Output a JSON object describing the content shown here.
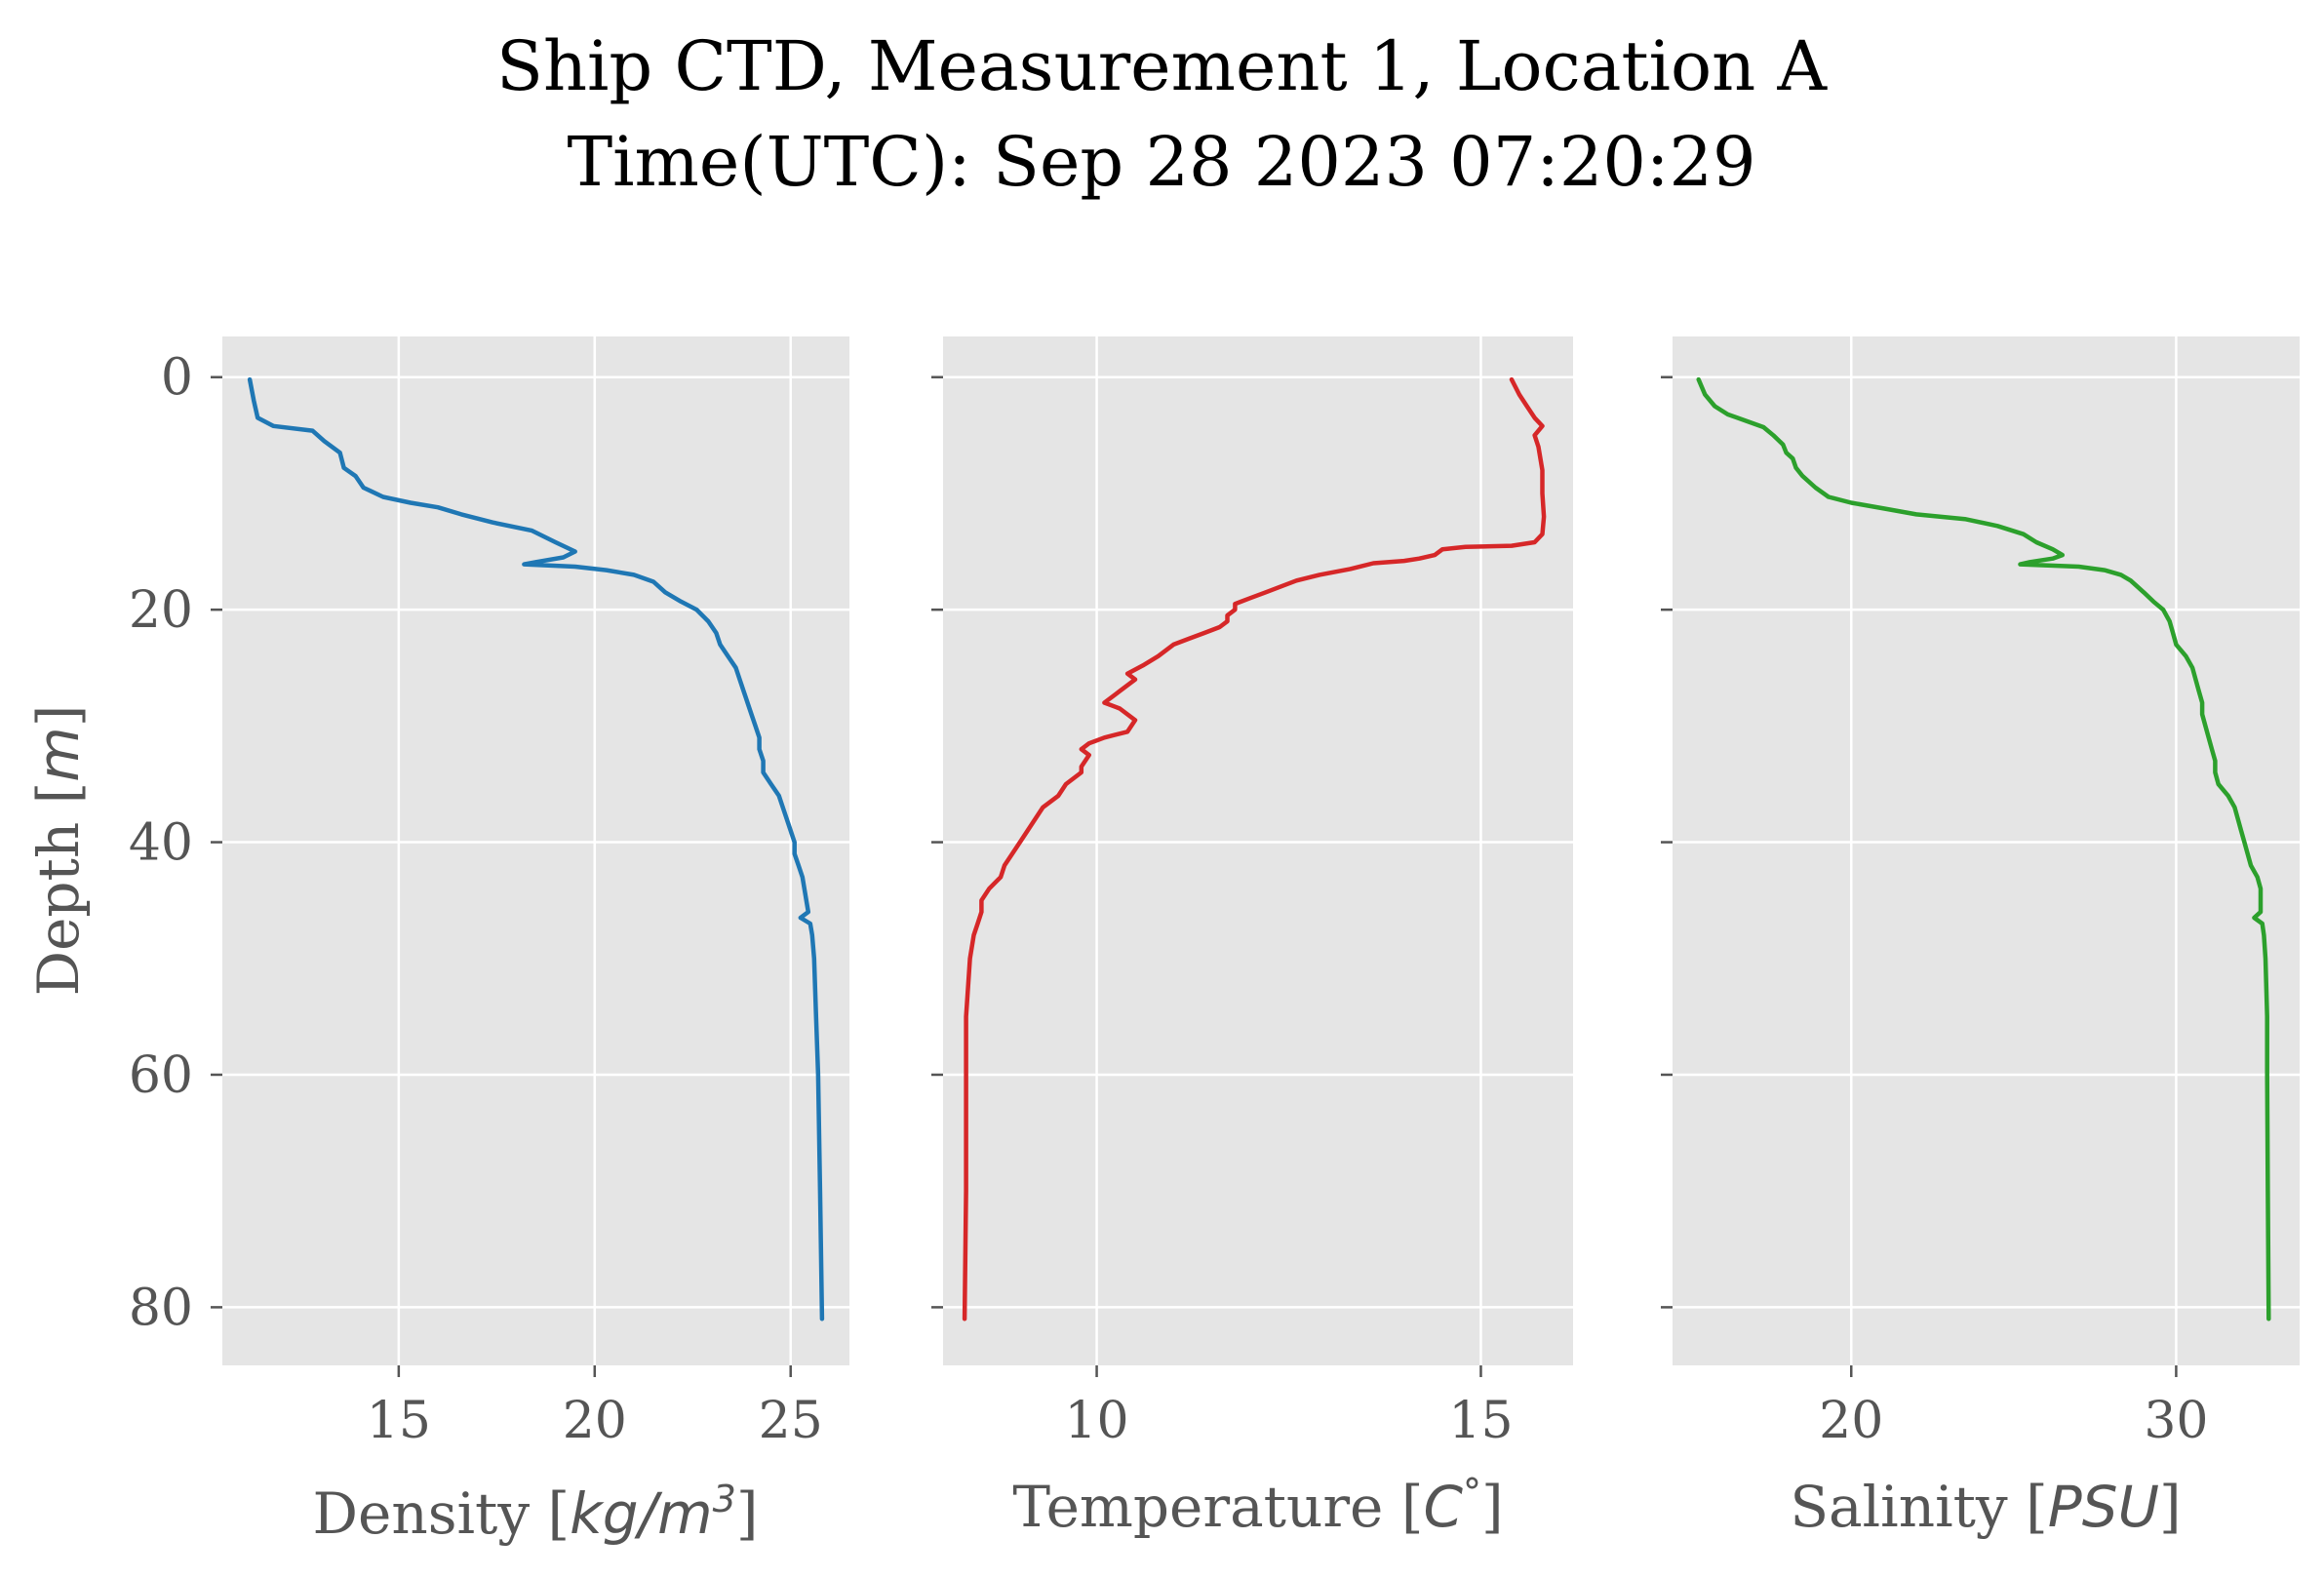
{
  "figure": {
    "title_line1": "Ship CTD, Measurement 1, Location A",
    "title_line2": "Time(UTC): Sep 28 2023 07:20:29"
  },
  "chart_data": [
    {
      "type": "line",
      "xlabel_text": "Density [",
      "xlabel_unit": "kg/m",
      "xlabel_sup": "3",
      "xlabel_close": "]",
      "ylabel_text": "Depth [",
      "ylabel_unit": "m",
      "ylabel_close": "]",
      "xlim": [
        10.5,
        26.5
      ],
      "ylim": [
        85,
        -3.5
      ],
      "y_inverted": true,
      "grid": true,
      "xticks": [
        15,
        20,
        25
      ],
      "yticks": [
        0,
        20,
        40,
        60,
        80
      ],
      "ytick_labels": [
        "0",
        "20",
        "40",
        "60",
        "80"
      ],
      "color": "#1f77b4",
      "series": [
        {
          "values": [
            [
              11.2,
              0.2
            ],
            [
              11.3,
              2
            ],
            [
              11.4,
              3.5
            ],
            [
              11.8,
              4.2
            ],
            [
              12.8,
              4.6
            ],
            [
              13.1,
              5.5
            ],
            [
              13.5,
              6.5
            ],
            [
              13.6,
              7.8
            ],
            [
              13.9,
              8.5
            ],
            [
              14.1,
              9.5
            ],
            [
              14.6,
              10.3
            ],
            [
              15.3,
              10.8
            ],
            [
              16.0,
              11.2
            ],
            [
              16.6,
              11.8
            ],
            [
              17.4,
              12.5
            ],
            [
              18.4,
              13.2
            ],
            [
              19.0,
              14.2
            ],
            [
              19.5,
              15.0
            ],
            [
              19.2,
              15.5
            ],
            [
              18.5,
              15.9
            ],
            [
              18.2,
              16.1
            ],
            [
              19.5,
              16.3
            ],
            [
              20.3,
              16.6
            ],
            [
              21.0,
              17.0
            ],
            [
              21.5,
              17.6
            ],
            [
              21.8,
              18.5
            ],
            [
              22.2,
              19.3
            ],
            [
              22.6,
              20.0
            ],
            [
              22.9,
              21.0
            ],
            [
              23.1,
              22.0
            ],
            [
              23.2,
              23.0
            ],
            [
              23.4,
              24.0
            ],
            [
              23.6,
              25.0
            ],
            [
              23.7,
              26.0
            ],
            [
              23.8,
              27.0
            ],
            [
              23.9,
              28.0
            ],
            [
              24.0,
              29.0
            ],
            [
              24.1,
              30.0
            ],
            [
              24.2,
              31.0
            ],
            [
              24.2,
              32.0
            ],
            [
              24.3,
              33.0
            ],
            [
              24.3,
              34.0
            ],
            [
              24.5,
              35.0
            ],
            [
              24.7,
              36.0
            ],
            [
              24.8,
              37.0
            ],
            [
              24.9,
              38.0
            ],
            [
              25.0,
              39.0
            ],
            [
              25.1,
              40.0
            ],
            [
              25.1,
              41.0
            ],
            [
              25.2,
              42.0
            ],
            [
              25.3,
              43.0
            ],
            [
              25.35,
              44.0
            ],
            [
              25.4,
              45.0
            ],
            [
              25.45,
              46.0
            ],
            [
              25.25,
              46.5
            ],
            [
              25.5,
              47.0
            ],
            [
              25.55,
              48.0
            ],
            [
              25.6,
              50.0
            ],
            [
              25.65,
              55.0
            ],
            [
              25.7,
              60.0
            ],
            [
              25.75,
              70.0
            ],
            [
              25.8,
              81.0
            ]
          ]
        }
      ]
    },
    {
      "type": "line",
      "xlabel_text": "Temperature [",
      "xlabel_unit": "C",
      "xlabel_sup": "°",
      "xlabel_close": "]",
      "xlim": [
        8.0,
        16.2
      ],
      "ylim": [
        85,
        -3.5
      ],
      "y_inverted": true,
      "grid": true,
      "xticks": [
        10,
        15
      ],
      "yticks": [
        0,
        20,
        40,
        60,
        80
      ],
      "color": "#d62728",
      "series": [
        {
          "values": [
            [
              15.4,
              0.2
            ],
            [
              15.5,
              1.5
            ],
            [
              15.6,
              2.5
            ],
            [
              15.7,
              3.5
            ],
            [
              15.8,
              4.2
            ],
            [
              15.7,
              5.0
            ],
            [
              15.75,
              6.0
            ],
            [
              15.8,
              8.0
            ],
            [
              15.8,
              10.0
            ],
            [
              15.82,
              12.0
            ],
            [
              15.8,
              13.5
            ],
            [
              15.7,
              14.2
            ],
            [
              15.4,
              14.5
            ],
            [
              14.8,
              14.6
            ],
            [
              14.5,
              14.8
            ],
            [
              14.4,
              15.3
            ],
            [
              14.2,
              15.6
            ],
            [
              14.0,
              15.8
            ],
            [
              13.6,
              16.0
            ],
            [
              13.3,
              16.5
            ],
            [
              12.9,
              17.0
            ],
            [
              12.6,
              17.5
            ],
            [
              12.4,
              18.0
            ],
            [
              12.2,
              18.5
            ],
            [
              12.0,
              19.0
            ],
            [
              11.8,
              19.5
            ],
            [
              11.8,
              20.0
            ],
            [
              11.7,
              20.5
            ],
            [
              11.7,
              21.0
            ],
            [
              11.6,
              21.5
            ],
            [
              11.4,
              22.0
            ],
            [
              11.2,
              22.5
            ],
            [
              11.0,
              23.0
            ],
            [
              10.8,
              24.0
            ],
            [
              10.6,
              24.8
            ],
            [
              10.4,
              25.5
            ],
            [
              10.5,
              26.0
            ],
            [
              10.3,
              27.0
            ],
            [
              10.1,
              28.0
            ],
            [
              10.3,
              28.5
            ],
            [
              10.5,
              29.5
            ],
            [
              10.4,
              30.5
            ],
            [
              10.1,
              31.0
            ],
            [
              9.9,
              31.5
            ],
            [
              9.8,
              32.0
            ],
            [
              9.9,
              32.5
            ],
            [
              9.8,
              33.5
            ],
            [
              9.8,
              34.0
            ],
            [
              9.6,
              35.0
            ],
            [
              9.5,
              36.0
            ],
            [
              9.3,
              37.0
            ],
            [
              9.2,
              38.0
            ],
            [
              9.1,
              39.0
            ],
            [
              9.0,
              40.0
            ],
            [
              8.9,
              41.0
            ],
            [
              8.8,
              42.0
            ],
            [
              8.75,
              43.0
            ],
            [
              8.6,
              44.0
            ],
            [
              8.5,
              45.0
            ],
            [
              8.5,
              46.0
            ],
            [
              8.45,
              47.0
            ],
            [
              8.4,
              48.0
            ],
            [
              8.35,
              50.0
            ],
            [
              8.3,
              55.0
            ],
            [
              8.3,
              60.0
            ],
            [
              8.3,
              70.0
            ],
            [
              8.28,
              81.0
            ]
          ]
        }
      ]
    },
    {
      "type": "line",
      "xlabel_text": "Salinity [",
      "xlabel_unit": "PSU",
      "xlabel_close": "]",
      "xlim": [
        14.5,
        33.8
      ],
      "ylim": [
        85,
        -3.5
      ],
      "y_inverted": true,
      "grid": true,
      "xticks": [
        20,
        30
      ],
      "yticks": [
        0,
        20,
        40,
        60,
        80
      ],
      "color": "#2ca02c",
      "series": [
        {
          "values": [
            [
              15.3,
              0.2
            ],
            [
              15.5,
              1.5
            ],
            [
              15.8,
              2.5
            ],
            [
              16.2,
              3.2
            ],
            [
              16.8,
              3.8
            ],
            [
              17.3,
              4.3
            ],
            [
              17.6,
              5.0
            ],
            [
              17.9,
              5.8
            ],
            [
              18.0,
              6.5
            ],
            [
              18.2,
              7.0
            ],
            [
              18.3,
              7.8
            ],
            [
              18.5,
              8.5
            ],
            [
              18.9,
              9.5
            ],
            [
              19.3,
              10.3
            ],
            [
              20.0,
              10.8
            ],
            [
              21.0,
              11.3
            ],
            [
              22.0,
              11.8
            ],
            [
              23.5,
              12.2
            ],
            [
              24.5,
              12.8
            ],
            [
              25.3,
              13.5
            ],
            [
              25.7,
              14.2
            ],
            [
              26.2,
              14.8
            ],
            [
              26.5,
              15.3
            ],
            [
              26.2,
              15.6
            ],
            [
              25.5,
              15.9
            ],
            [
              25.2,
              16.1
            ],
            [
              27.0,
              16.3
            ],
            [
              27.8,
              16.6
            ],
            [
              28.3,
              17.0
            ],
            [
              28.6,
              17.5
            ],
            [
              29.0,
              18.5
            ],
            [
              29.3,
              19.3
            ],
            [
              29.6,
              20.0
            ],
            [
              29.8,
              21.0
            ],
            [
              29.9,
              22.0
            ],
            [
              30.0,
              23.0
            ],
            [
              30.3,
              24.0
            ],
            [
              30.5,
              25.0
            ],
            [
              30.6,
              26.0
            ],
            [
              30.7,
              27.0
            ],
            [
              30.8,
              28.0
            ],
            [
              30.8,
              29.0
            ],
            [
              30.9,
              30.0
            ],
            [
              31.0,
              31.0
            ],
            [
              31.1,
              32.0
            ],
            [
              31.2,
              33.0
            ],
            [
              31.2,
              34.0
            ],
            [
              31.3,
              35.0
            ],
            [
              31.6,
              36.0
            ],
            [
              31.8,
              37.0
            ],
            [
              31.9,
              38.0
            ],
            [
              32.0,
              39.0
            ],
            [
              32.1,
              40.0
            ],
            [
              32.2,
              41.0
            ],
            [
              32.3,
              42.0
            ],
            [
              32.5,
              43.0
            ],
            [
              32.6,
              44.0
            ],
            [
              32.6,
              45.0
            ],
            [
              32.6,
              46.0
            ],
            [
              32.4,
              46.5
            ],
            [
              32.65,
              47.0
            ],
            [
              32.7,
              48.0
            ],
            [
              32.75,
              50.0
            ],
            [
              32.8,
              55.0
            ],
            [
              32.8,
              60.0
            ],
            [
              32.82,
              70.0
            ],
            [
              32.85,
              81.0
            ]
          ]
        }
      ]
    }
  ]
}
